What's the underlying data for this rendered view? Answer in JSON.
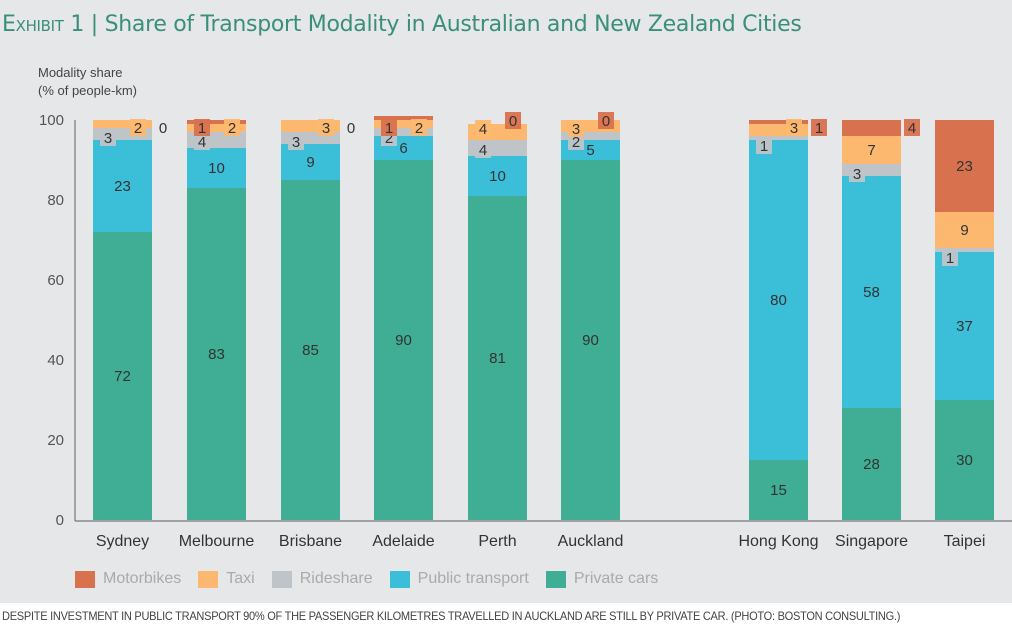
{
  "title": {
    "exhibit": "Exhibit 1",
    "separator": "|",
    "text": "Share of Transport Modality in Australian and New Zealand Cities"
  },
  "caption": "DESPITE INVESTMENT IN PUBLIC TRANSPORT 90% OF THE PASSENGER KILOMETRES TRAVELLED IN AUCKLAND ARE STILL BY PRIVATE CAR. (PHOTO: BOSTON CONSULTING.)",
  "chart_data": {
    "type": "bar",
    "stacked": true,
    "title": "Share of Transport Modality in Australian and New Zealand Cities",
    "ylabel": "Modality share (% of people-km)",
    "ylabel_lines": [
      "Modality share",
      "(% of people-km)"
    ],
    "xlabel": "",
    "ylim": [
      0,
      100
    ],
    "yticks": [
      0,
      20,
      40,
      60,
      80,
      100
    ],
    "grid": false,
    "legend_position": "bottom",
    "categories": [
      "Sydney",
      "Melbourne",
      "Brisbane",
      "Adelaide",
      "Perth",
      "Auckland",
      "Hong Kong",
      "Singapore",
      "Taipei"
    ],
    "series": [
      {
        "name": "Private cars",
        "color": "#3fae94",
        "values": [
          72,
          83,
          85,
          90,
          81,
          90,
          15,
          28,
          30
        ]
      },
      {
        "name": "Public transport",
        "color": "#3bbfd8",
        "values": [
          23,
          10,
          9,
          6,
          10,
          5,
          80,
          58,
          37
        ]
      },
      {
        "name": "Rideshare",
        "color": "#bec4c8",
        "values": [
          3,
          4,
          3,
          2,
          4,
          2,
          1,
          3,
          1
        ]
      },
      {
        "name": "Taxi",
        "color": "#fcb86f",
        "values": [
          2,
          2,
          3,
          2,
          4,
          3,
          3,
          7,
          9
        ]
      },
      {
        "name": "Motorbikes",
        "color": "#d8714e",
        "values": [
          0,
          1,
          0,
          1,
          0,
          0,
          1,
          4,
          23
        ]
      }
    ],
    "legend_order": [
      "Motorbikes",
      "Taxi",
      "Rideshare",
      "Public transport",
      "Private cars"
    ]
  }
}
